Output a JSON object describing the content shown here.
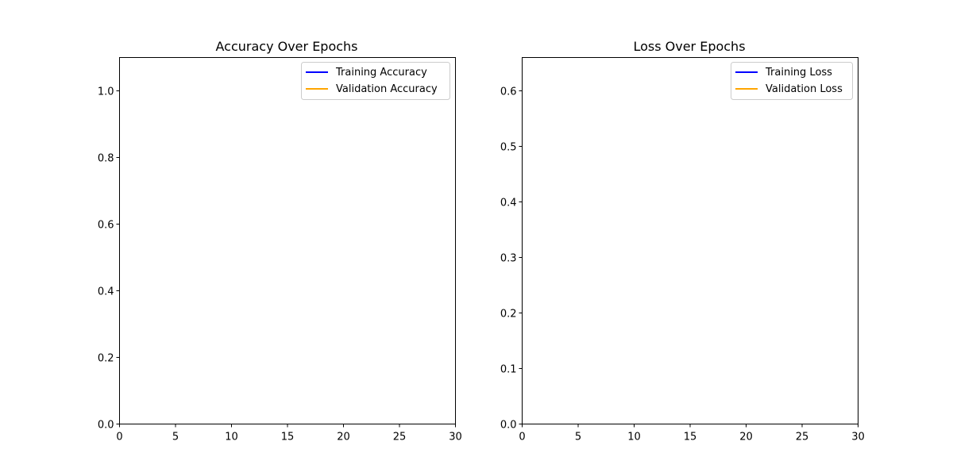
{
  "chart_data": [
    {
      "type": "line",
      "title": "Accuracy Over Epochs",
      "xlabel": "",
      "ylabel": "",
      "xlim": [
        0,
        30
      ],
      "ylim": [
        0,
        1.1
      ],
      "xticks": [
        0,
        5,
        10,
        15,
        20,
        25,
        30
      ],
      "yticks": [
        0.0,
        0.2,
        0.4,
        0.6,
        0.8,
        1.0
      ],
      "ytick_labels": [
        "0.0",
        "0.2",
        "0.4",
        "0.6",
        "0.8",
        "1.0"
      ],
      "xtick_labels": [
        "0",
        "5",
        "10",
        "15",
        "20",
        "25",
        "30"
      ],
      "grid": false,
      "legend_position": "top-right",
      "series": [
        {
          "name": "Training Accuracy",
          "color": "#0000ff",
          "x": [],
          "values": []
        },
        {
          "name": "Validation Accuracy",
          "color": "#ffa500",
          "x": [],
          "values": []
        }
      ]
    },
    {
      "type": "line",
      "title": "Loss Over Epochs",
      "xlabel": "",
      "ylabel": "",
      "xlim": [
        0,
        30
      ],
      "ylim": [
        0,
        0.66
      ],
      "xticks": [
        0,
        5,
        10,
        15,
        20,
        25,
        30
      ],
      "yticks": [
        0.0,
        0.1,
        0.2,
        0.3,
        0.4,
        0.5,
        0.6
      ],
      "ytick_labels": [
        "0.0",
        "0.1",
        "0.2",
        "0.3",
        "0.4",
        "0.5",
        "0.6"
      ],
      "xtick_labels": [
        "0",
        "5",
        "10",
        "15",
        "20",
        "25",
        "30"
      ],
      "grid": false,
      "legend_position": "top-right",
      "series": [
        {
          "name": "Training Loss",
          "color": "#0000ff",
          "x": [],
          "values": []
        },
        {
          "name": "Validation Loss",
          "color": "#ffa500",
          "x": [],
          "values": []
        }
      ]
    }
  ]
}
